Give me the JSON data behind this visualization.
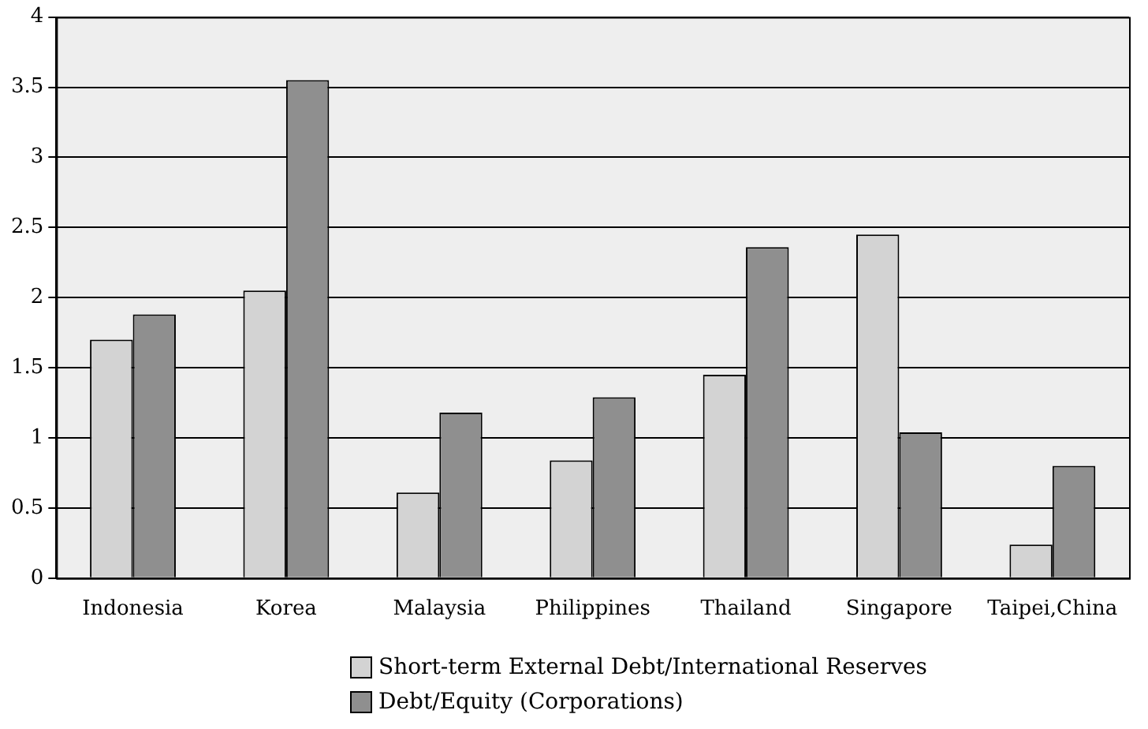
{
  "chart_data": {
    "type": "bar",
    "categories": [
      "Indonesia",
      "Korea",
      "Malaysia",
      "Philippines",
      "Thailand",
      "Singapore",
      "Taipei,China"
    ],
    "series": [
      {
        "name": "Short-term External Debt/International Reserves",
        "color": "#d3d3d3",
        "values": [
          1.7,
          2.05,
          0.61,
          0.84,
          1.45,
          2.45,
          0.24
        ]
      },
      {
        "name": "Debt/Equity (Corporations)",
        "color": "#8f8f8f",
        "values": [
          1.88,
          3.55,
          1.18,
          1.29,
          2.36,
          1.04,
          0.8
        ]
      }
    ],
    "ylim": [
      0,
      4
    ],
    "yticks": [
      0,
      0.5,
      1,
      1.5,
      2,
      2.5,
      3,
      3.5,
      4
    ],
    "grid": "y",
    "legend": "bottom"
  }
}
